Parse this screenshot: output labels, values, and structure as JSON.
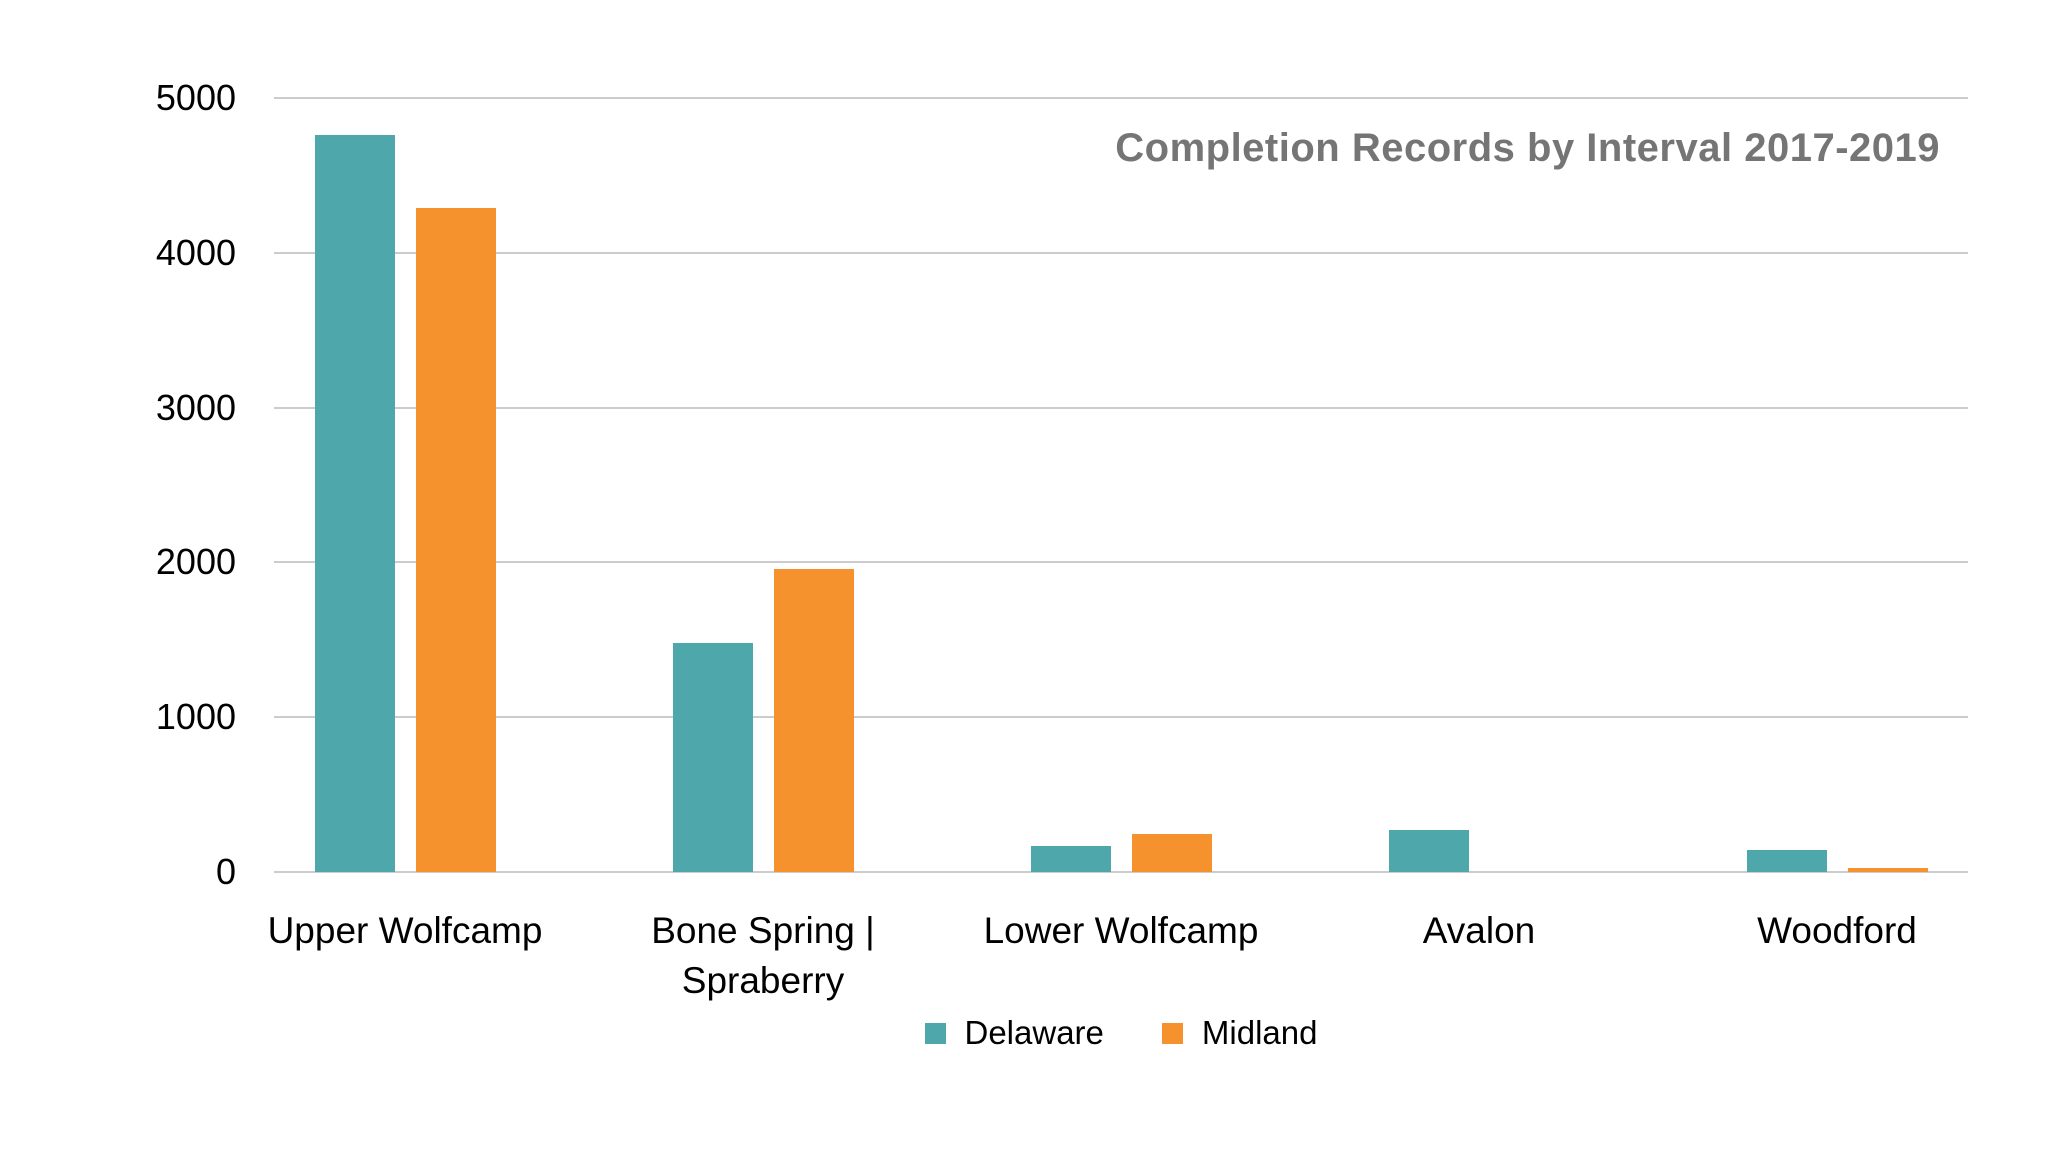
{
  "title": "Completion Records by Interval 2017-2019",
  "colors": {
    "delaware": "#4DA7AB",
    "midland": "#F6922D",
    "gridline": "#CCCCCC",
    "title_text": "#757575",
    "axis_text": "#000000",
    "background": "#FFFFFF"
  },
  "chart_data": {
    "type": "bar",
    "title": "Completion Records by Interval 2017-2019",
    "categories": [
      "Upper Wolfcamp",
      "Bone Spring | Spraberry",
      "Lower Wolfcamp",
      "Avalon",
      "Woodford"
    ],
    "series": [
      {
        "name": "Delaware",
        "color": "#4DA7AB",
        "values": [
          4760,
          1480,
          165,
          270,
          145
        ]
      },
      {
        "name": "Midland",
        "color": "#F6922D",
        "values": [
          4290,
          1955,
          245,
          0,
          25
        ]
      }
    ],
    "xlabel": "",
    "ylabel": "",
    "ylim": [
      0,
      5000
    ],
    "yticks": [
      0,
      1000,
      2000,
      3000,
      4000,
      5000
    ],
    "grid": true,
    "legend_position": "bottom"
  }
}
